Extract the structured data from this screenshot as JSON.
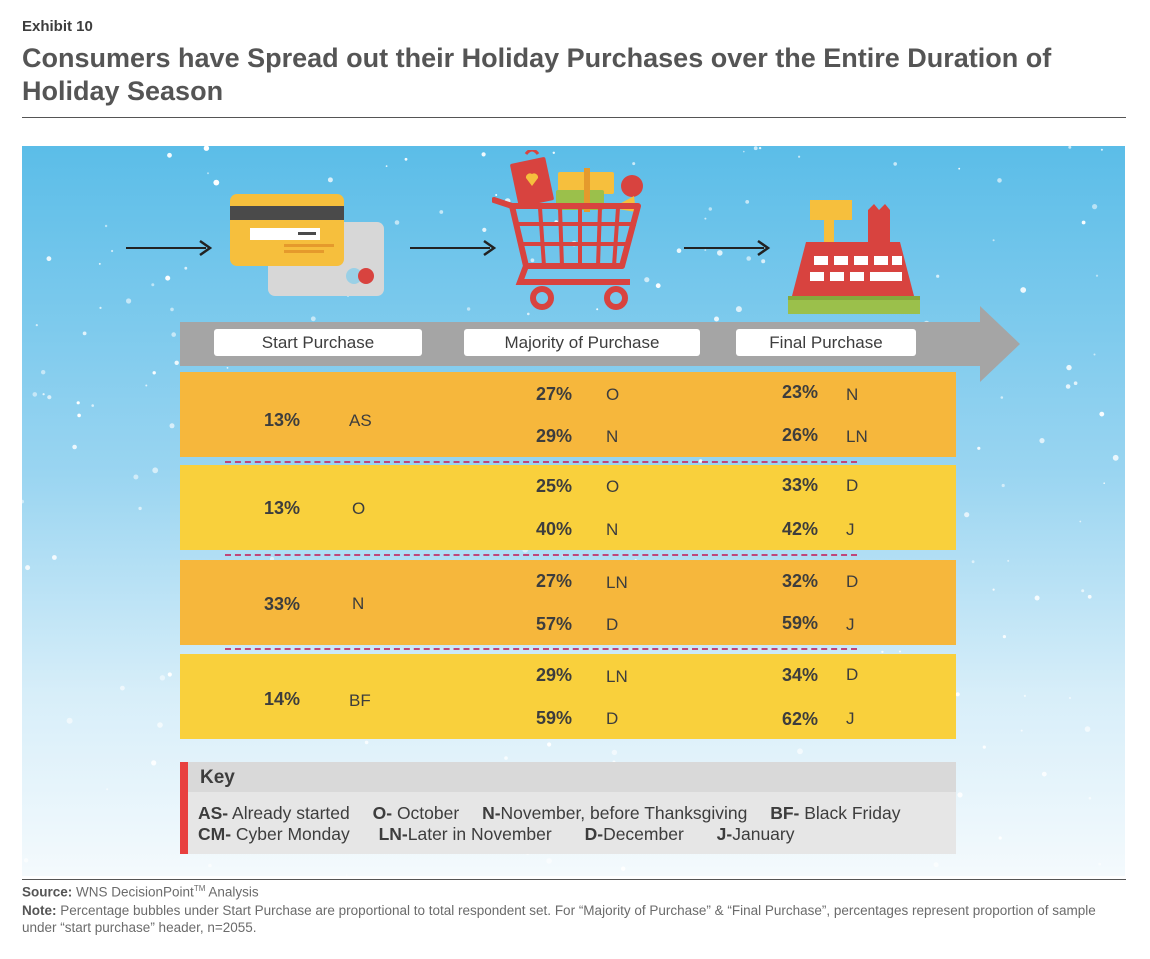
{
  "header": {
    "exhibit": "Exhibit 10",
    "title": "Consumers have Spread out their Holiday Purchases over the Entire Duration of Holiday Season"
  },
  "stages": {
    "start": "Start Purchase",
    "majority": "Majority of Purchase",
    "final": "Final Purchase"
  },
  "rows": [
    {
      "start": {
        "pct": "13%",
        "code": "AS"
      },
      "majority": [
        {
          "pct": "27%",
          "code": "O"
        },
        {
          "pct": "29%",
          "code": "N"
        }
      ],
      "final": [
        {
          "pct": "23%",
          "code": "N"
        },
        {
          "pct": "26%",
          "code": "LN"
        }
      ]
    },
    {
      "start": {
        "pct": "13%",
        "code": "O"
      },
      "majority": [
        {
          "pct": "25%",
          "code": "O"
        },
        {
          "pct": "40%",
          "code": "N"
        }
      ],
      "final": [
        {
          "pct": "33%",
          "code": "D"
        },
        {
          "pct": "42%",
          "code": "J"
        }
      ]
    },
    {
      "start": {
        "pct": "33%",
        "code": "N"
      },
      "majority": [
        {
          "pct": "27%",
          "code": "LN"
        },
        {
          "pct": "57%",
          "code": "D"
        }
      ],
      "final": [
        {
          "pct": "32%",
          "code": "D"
        },
        {
          "pct": "59%",
          "code": "J"
        }
      ]
    },
    {
      "start": {
        "pct": "14%",
        "code": "BF"
      },
      "majority": [
        {
          "pct": "29%",
          "code": "LN"
        },
        {
          "pct": "59%",
          "code": "D"
        }
      ],
      "final": [
        {
          "pct": "34%",
          "code": "D"
        },
        {
          "pct": "62%",
          "code": "J"
        }
      ]
    }
  ],
  "key": {
    "title": "Key",
    "line1": [
      {
        "abbr": "AS-",
        "text": " Already started"
      },
      {
        "abbr": "O-",
        "text": " October"
      },
      {
        "abbr": "N-",
        "text": "November, before Thanksgiving"
      },
      {
        "abbr": "BF-",
        "text": " Black Friday"
      }
    ],
    "line2": [
      {
        "abbr": "CM-",
        "text": " Cyber Monday"
      },
      {
        "abbr": "LN-",
        "text": "Later in November"
      },
      {
        "abbr": "D-",
        "text": "December"
      },
      {
        "abbr": "J-",
        "text": "January"
      }
    ]
  },
  "footer": {
    "source_label": "Source:",
    "source_text": " WNS DecisionPoint",
    "source_tm": "TM",
    "source_tail": " Analysis",
    "note_label": "Note:",
    "note_text": " Percentage bubbles under Start Purchase are proportional to total respondent set. For “Majority of Purchase” & “Final Purchase”, percentages represent proportion of sample under “start purchase” header, n=2055."
  },
  "colors": {
    "row_orange": "#f6b73c",
    "row_yellow": "#f9d03c",
    "key_accent": "#e8403f",
    "banner_gray": "#a5a5a5"
  }
}
